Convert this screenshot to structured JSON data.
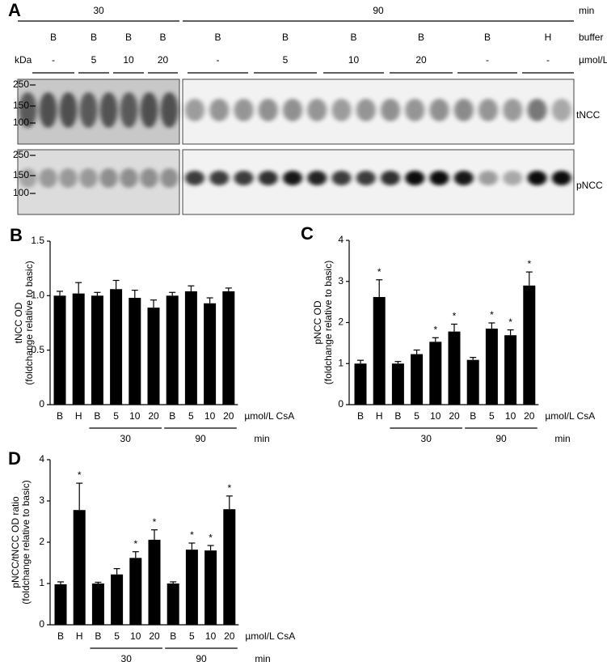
{
  "blot": {
    "panel": "A",
    "time_row": {
      "labels": [
        "30",
        "90"
      ],
      "unit": "min"
    },
    "buffer_row": {
      "labels": [
        "B",
        "B",
        "B",
        "B",
        "B",
        "B",
        "B",
        "B",
        "B",
        "H"
      ],
      "unit": "buffer"
    },
    "csa_row": {
      "labels": [
        "-",
        "5",
        "10",
        "20",
        "-",
        "5",
        "10",
        "20",
        "-",
        "-"
      ],
      "unit": "µmol/L CsA"
    },
    "kda_label": "kDa",
    "blots": [
      {
        "name": "tNCC",
        "markers": [
          "250",
          "150",
          "100"
        ]
      },
      {
        "name": "pNCC",
        "markers": [
          "250",
          "150",
          "100"
        ]
      }
    ]
  },
  "chart_data": [
    {
      "type": "bar",
      "panel": "B",
      "y_label": [
        "tNCC OD",
        "(foldchange relative to basic)"
      ],
      "categories": [
        "B",
        "H",
        "B",
        "5",
        "10",
        "20",
        "B",
        "5",
        "10",
        "20"
      ],
      "values": [
        1.0,
        1.02,
        1.0,
        1.06,
        0.98,
        0.89,
        1.0,
        1.04,
        0.93,
        1.04
      ],
      "errors": [
        0.04,
        0.1,
        0.03,
        0.08,
        0.07,
        0.07,
        0.03,
        0.05,
        0.05,
        0.03
      ],
      "significant": [
        false,
        false,
        false,
        false,
        false,
        false,
        false,
        false,
        false,
        false
      ],
      "star": "*",
      "groups": [
        "30",
        "90"
      ],
      "unit_label": "µmol/L CsA",
      "group_unit": "min",
      "color": "#000000",
      "ylim": [
        0,
        1.5
      ],
      "yticks": [
        0,
        0.5,
        {
          "value": 1,
          "label": "1.0"
        },
        1.5
      ]
    },
    {
      "type": "bar",
      "panel": "C",
      "y_label": [
        "pNCC OD",
        "(foldchange relative to basic)"
      ],
      "categories": [
        "B",
        "H",
        "B",
        "5",
        "10",
        "20",
        "B",
        "5",
        "10",
        "20"
      ],
      "values": [
        1.0,
        2.62,
        1.0,
        1.23,
        1.53,
        1.78,
        1.09,
        1.85,
        1.69,
        2.9
      ],
      "errors": [
        0.08,
        0.42,
        0.05,
        0.1,
        0.1,
        0.18,
        0.06,
        0.14,
        0.13,
        0.33
      ],
      "significant": [
        false,
        true,
        false,
        false,
        true,
        true,
        false,
        true,
        true,
        true
      ],
      "star": "*",
      "groups": [
        "30",
        "90"
      ],
      "unit_label": "µmol/L CsA",
      "group_unit": "min",
      "color": "#000000",
      "ylim": [
        0,
        4
      ],
      "yticks": [
        0,
        1,
        2,
        3,
        4
      ]
    },
    {
      "type": "bar",
      "panel": "D",
      "y_label": [
        "pNCC/tNCC OD ratio",
        "(foldchange relative to basic)"
      ],
      "categories": [
        "B",
        "H",
        "B",
        "5",
        "10",
        "20",
        "B",
        "5",
        "10",
        "20"
      ],
      "values": [
        0.98,
        2.78,
        1.0,
        1.22,
        1.62,
        2.06,
        1.0,
        1.82,
        1.8,
        2.8
      ],
      "errors": [
        0.06,
        0.65,
        0.03,
        0.14,
        0.15,
        0.24,
        0.04,
        0.16,
        0.12,
        0.32
      ],
      "significant": [
        false,
        true,
        false,
        false,
        true,
        true,
        false,
        true,
        true,
        true
      ],
      "star": "*",
      "groups": [
        "30",
        "90"
      ],
      "unit_label": "µmol/L CsA",
      "group_unit": "min",
      "color": "#000000",
      "ylim": [
        0,
        4
      ],
      "yticks": [
        0,
        1,
        2,
        3,
        4
      ]
    }
  ]
}
